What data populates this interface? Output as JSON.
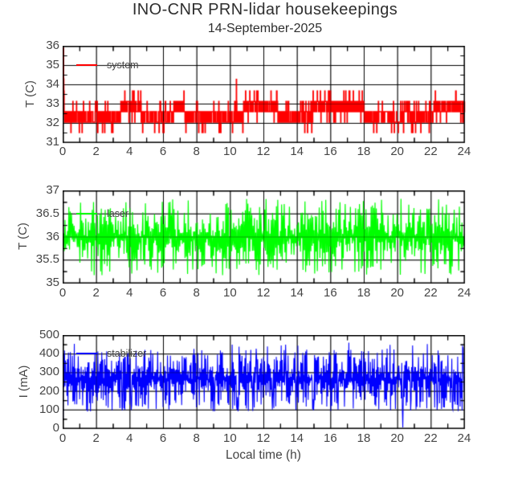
{
  "figure": {
    "title": "INO-CNR PRN-lidar housekeepings",
    "subtitle": "14-September-2025",
    "xlabel": "Local time (h)",
    "text_color": "#454545",
    "title_color": "#2e2e2e",
    "axis_color": "#000000",
    "background": "#ffffff"
  },
  "chart_data": [
    {
      "type": "line",
      "panel": "system-temperature",
      "ylabel": "T (C)",
      "ylim": [
        31,
        36
      ],
      "yticks": [
        {
          "v": 31,
          "label": "31"
        },
        {
          "v": 32,
          "label": "32"
        },
        {
          "v": 33,
          "label": "33"
        },
        {
          "v": 34,
          "label": "34"
        },
        {
          "v": 35,
          "label": "35"
        },
        {
          "v": 36,
          "label": "36"
        }
      ],
      "ygrid": [
        32,
        33,
        34,
        35
      ],
      "yminor": [
        31.5,
        32.5,
        33.5,
        34.5,
        35.5
      ],
      "xlim": [
        0,
        24
      ],
      "xticks": [
        {
          "v": 0,
          "label": "0"
        },
        {
          "v": 2,
          "label": "2"
        },
        {
          "v": 4,
          "label": "4"
        },
        {
          "v": 6,
          "label": "6"
        },
        {
          "v": 8,
          "label": "8"
        },
        {
          "v": 10,
          "label": "10"
        },
        {
          "v": 12,
          "label": "12"
        },
        {
          "v": 14,
          "label": "14"
        },
        {
          "v": 16,
          "label": "16"
        },
        {
          "v": 18,
          "label": "18"
        },
        {
          "v": 20,
          "label": "20"
        },
        {
          "v": 22,
          "label": "22"
        },
        {
          "v": 24,
          "label": "24"
        }
      ],
      "xgrid": [
        2,
        4,
        6,
        8,
        10,
        12,
        14,
        16,
        18,
        20,
        22
      ],
      "xminor": [
        1,
        3,
        5,
        7,
        9,
        11,
        13,
        15,
        17,
        19,
        21,
        23
      ],
      "series": [
        {
          "name": "system",
          "color": "#ff0000",
          "summary": "Quantized square-wave temperature flickering between discrete levels; core band 32.06-33.14 C with excursions up to 33.68 C and dips to 31.52 C; startup spike to 35.9 C at t=0; isolated spike to 34.28 C near t=10.35 h",
          "signal": {
            "kind": "quantized_step",
            "levels": [
              31.52,
              32.06,
              32.6,
              33.14,
              33.68
            ],
            "core_band": [
              32.06,
              33.14
            ],
            "startup": [
              32.5,
              35.9,
              34.3,
              33.68
            ],
            "spike": {
              "t": 10.35,
              "value": 34.28
            },
            "samples": 1440,
            "seed": 11
          }
        }
      ]
    },
    {
      "type": "line",
      "panel": "laser-temperature",
      "ylabel": "T (C)",
      "ylim": [
        35,
        37
      ],
      "yticks": [
        {
          "v": 35,
          "label": "35"
        },
        {
          "v": 35.5,
          "label": "35.5"
        },
        {
          "v": 36,
          "label": "36"
        },
        {
          "v": 36.5,
          "label": "36.5"
        },
        {
          "v": 37,
          "label": "37"
        }
      ],
      "ygrid": [
        35.5,
        36,
        36.5
      ],
      "yminor": [
        35.25,
        35.75,
        36.25,
        36.75
      ],
      "xlim": [
        0,
        24
      ],
      "xticks": [
        {
          "v": 0,
          "label": "0"
        },
        {
          "v": 2,
          "label": "2"
        },
        {
          "v": 4,
          "label": "4"
        },
        {
          "v": 6,
          "label": "6"
        },
        {
          "v": 8,
          "label": "8"
        },
        {
          "v": 10,
          "label": "10"
        },
        {
          "v": 12,
          "label": "12"
        },
        {
          "v": 14,
          "label": "14"
        },
        {
          "v": 16,
          "label": "16"
        },
        {
          "v": 18,
          "label": "18"
        },
        {
          "v": 20,
          "label": "20"
        },
        {
          "v": 22,
          "label": "22"
        },
        {
          "v": 24,
          "label": "24"
        }
      ],
      "xgrid": [
        2,
        4,
        6,
        8,
        10,
        12,
        14,
        16,
        18,
        20,
        22
      ],
      "xminor": [
        1,
        3,
        5,
        7,
        9,
        11,
        13,
        15,
        17,
        19,
        21,
        23
      ],
      "series": [
        {
          "name": "laser",
          "color": "#00ff00",
          "summary": "Dense high-frequency noise centered on 36.0 C, envelope approximately 35.2 to 36.8 C for the whole day",
          "signal": {
            "kind": "uniform_noise",
            "center": 36.0,
            "min": 35.17,
            "max": 36.83,
            "samples": 620,
            "seed": 22
          }
        }
      ]
    },
    {
      "type": "line",
      "panel": "stabilizer-current",
      "ylabel": "I (mA)",
      "ylim": [
        0,
        500
      ],
      "yticks": [
        {
          "v": 0,
          "label": "0"
        },
        {
          "v": 100,
          "label": "100"
        },
        {
          "v": 200,
          "label": "200"
        },
        {
          "v": 300,
          "label": "300"
        },
        {
          "v": 400,
          "label": "400"
        },
        {
          "v": 500,
          "label": "500"
        }
      ],
      "ygrid": [
        100,
        200,
        300,
        400
      ],
      "yminor": [
        50,
        150,
        250,
        350,
        450
      ],
      "xlim": [
        0,
        24
      ],
      "xticks": [
        {
          "v": 0,
          "label": "0"
        },
        {
          "v": 2,
          "label": "2"
        },
        {
          "v": 4,
          "label": "4"
        },
        {
          "v": 6,
          "label": "6"
        },
        {
          "v": 8,
          "label": "8"
        },
        {
          "v": 10,
          "label": "10"
        },
        {
          "v": 12,
          "label": "12"
        },
        {
          "v": 14,
          "label": "14"
        },
        {
          "v": 16,
          "label": "16"
        },
        {
          "v": 18,
          "label": "18"
        },
        {
          "v": 20,
          "label": "20"
        },
        {
          "v": 22,
          "label": "22"
        },
        {
          "v": 24,
          "label": "24"
        }
      ],
      "xgrid": [
        2,
        4,
        6,
        8,
        10,
        12,
        14,
        16,
        18,
        20,
        22
      ],
      "xminor": [
        1,
        3,
        5,
        7,
        9,
        11,
        13,
        15,
        17,
        19,
        21,
        23
      ],
      "series": [
        {
          "name": "stabilizer",
          "color": "#0000ff",
          "summary": "Dense current noise filling roughly 105-425 mA, occasional peaks near 460 mA, start value near 45 mA at t=0 and one downward dropout to about 5 mA near t=20.3 h",
          "signal": {
            "kind": "uniform_noise",
            "center": 265,
            "min": 105,
            "max": 425,
            "top_spikes_max": 462,
            "bottom_min": 92,
            "startup": [
              45,
              400
            ],
            "downspike": {
              "t": 20.32,
              "value": 6
            },
            "samples": 820,
            "seed": 33
          }
        }
      ]
    }
  ]
}
